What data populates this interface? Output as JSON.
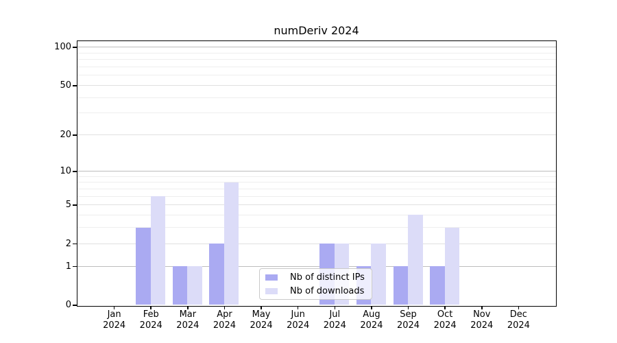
{
  "chart_data": {
    "type": "bar",
    "title": "numDeriv 2024",
    "year_label": "2024",
    "categories": [
      "Jan",
      "Feb",
      "Mar",
      "Apr",
      "May",
      "Jun",
      "Jul",
      "Aug",
      "Sep",
      "Oct",
      "Nov",
      "Dec"
    ],
    "series": [
      {
        "name": "Nb of distinct IPs",
        "color": "#aaaaf2",
        "values": [
          0,
          3,
          1,
          2,
          0,
          0,
          2,
          1,
          1,
          1,
          0,
          0
        ]
      },
      {
        "name": "Nb of downloads",
        "color": "#dcdcf8",
        "values": [
          0,
          6,
          1,
          8,
          0,
          0,
          2,
          2,
          4,
          3,
          0,
          0
        ]
      }
    ],
    "y_scale": "log1p",
    "y_ticks": [
      0,
      1,
      2,
      5,
      10,
      20,
      50,
      100
    ],
    "y_minor_gridlines": [
      3,
      4,
      6,
      7,
      8,
      9,
      30,
      40,
      60,
      70,
      80,
      90
    ],
    "ylim": [
      0,
      112
    ],
    "grid": true,
    "legend_position": "lower center"
  },
  "colors": {
    "bar_distinct_ips": "#aaaaf2",
    "bar_downloads": "#dcdcf8",
    "grid_decade": "#bdbdbd",
    "grid_major": "#e0e0e0",
    "grid_minor": "#eeeeee",
    "axis": "#000000",
    "background": "#ffffff",
    "legend_border": "#c9c9c9"
  }
}
